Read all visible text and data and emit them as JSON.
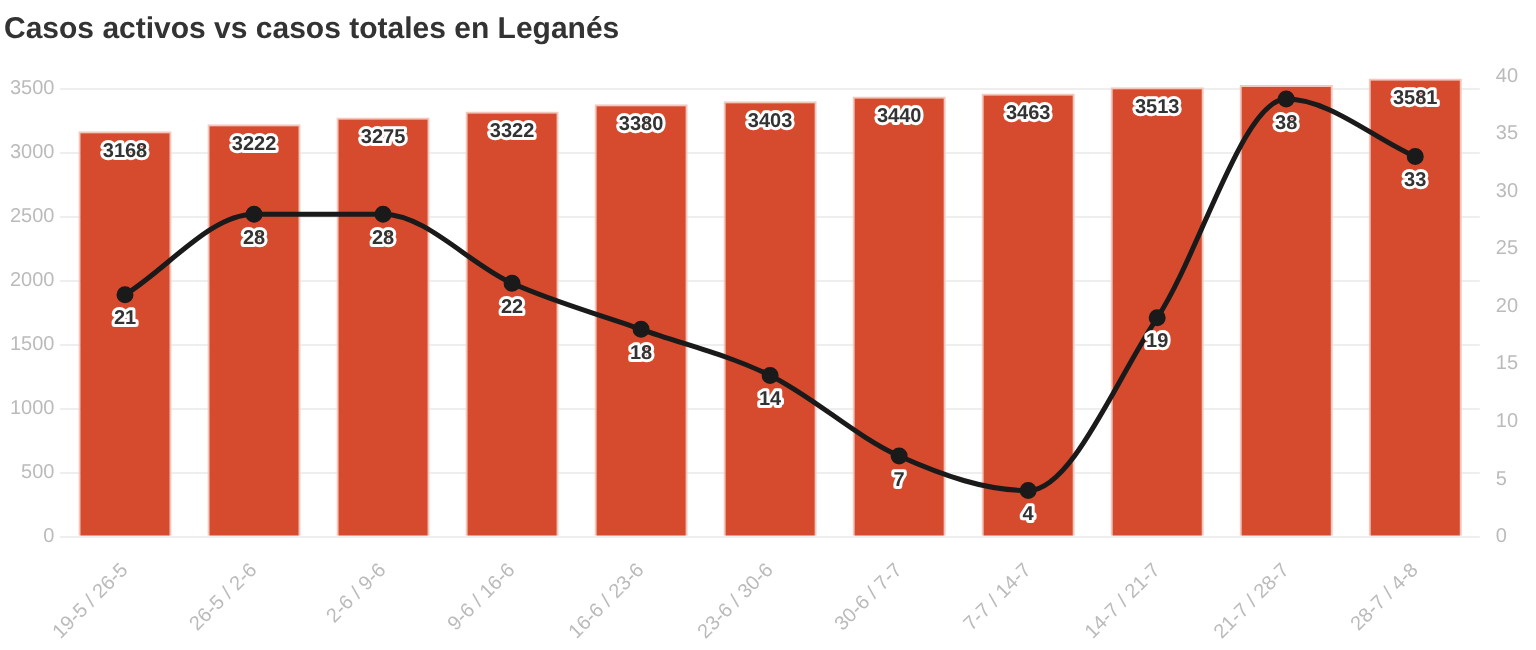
{
  "chart_data": {
    "type": "bar",
    "title": "Casos activos vs casos totales en Leganés",
    "categories": [
      "19-5 / 26-5",
      "26-5 / 2-6",
      "2-6 / 9-6",
      "9-6 / 16-6",
      "16-6 / 23-6",
      "23-6 / 30-6",
      "30-6 / 7-7",
      "7-7 / 14-7",
      "14-7 / 21-7",
      "21-7 / 28-7",
      "28-7 / 4-8"
    ],
    "series": [
      {
        "color": "#d64a2e",
        "values": [
          3168,
          3222,
          3275,
          3322,
          3380,
          3403,
          3440,
          3463,
          3513,
          3530,
          3581
        ],
        "value_labels": [
          "3168",
          "3222",
          "3275",
          "3322",
          "3380",
          "3403",
          "3440",
          "3463",
          "3513",
          null,
          "3581"
        ]
      },
      {
        "type": "line",
        "axis": "y2",
        "color": "#1a1a1a",
        "values": [
          21,
          28,
          28,
          22,
          18,
          14,
          7,
          4,
          19,
          38,
          33
        ],
        "value_labels": [
          "21",
          "28",
          "28",
          "22",
          "18",
          "14",
          "7",
          "4",
          "19",
          "38",
          "33"
        ]
      }
    ],
    "ylim": [
      0,
      3600
    ],
    "yticks": [
      0,
      500,
      1000,
      1500,
      2000,
      2500,
      3000,
      3500
    ],
    "y2lim": [
      0,
      40
    ],
    "y2ticks": [
      0,
      5,
      10,
      15,
      20,
      25,
      30,
      35,
      40
    ],
    "grid": "y",
    "legend": false,
    "marker": "circle",
    "line_style": "solid"
  }
}
